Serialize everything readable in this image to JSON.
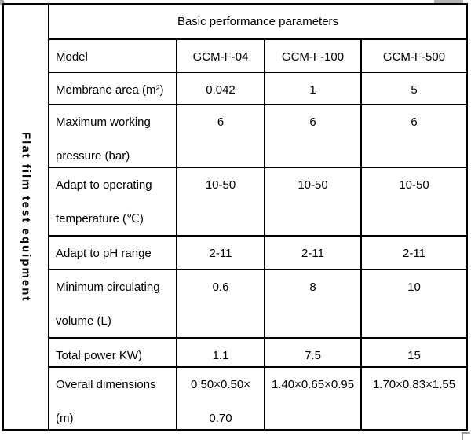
{
  "table": {
    "side_label": "Flat film test equipment",
    "header": "Basic performance parameters",
    "model_row": {
      "label": "Model",
      "values": [
        "GCM-F-04",
        "GCM-F-100",
        "GCM-F-500"
      ]
    },
    "rows": [
      {
        "label": "Membrane area (m²)",
        "values": [
          "0.042",
          "1",
          "5"
        ]
      },
      {
        "label": "Maximum working\npressure (bar)",
        "values": [
          "6",
          "6",
          "6"
        ]
      },
      {
        "label": "Adapt to operating\ntemperature (℃)",
        "values": [
          "10-50",
          "10-50",
          "10-50"
        ]
      },
      {
        "label": "Adapt to pH range",
        "values": [
          "2-11",
          "2-11",
          "2-11"
        ]
      },
      {
        "label": "Minimum circulating\nvolume (L)",
        "values": [
          "0.6",
          "8",
          "10"
        ]
      },
      {
        "label": "Total power KW)",
        "values": [
          "1.1",
          "7.5",
          "15"
        ]
      },
      {
        "label": "Overall dimensions\n(m)",
        "values": [
          "0.50×0.50×\n0.70",
          "1.40×0.65×0.95",
          "1.70×0.83×1.55"
        ]
      }
    ]
  }
}
